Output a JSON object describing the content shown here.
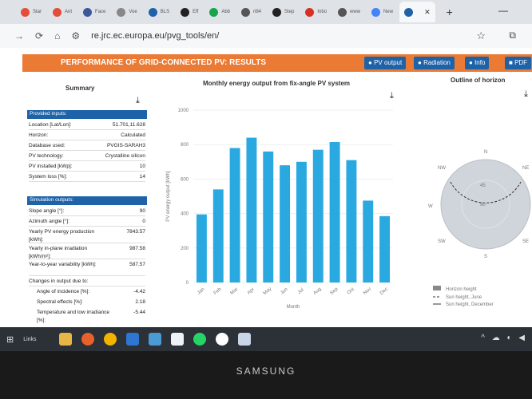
{
  "browser": {
    "tabs": [
      {
        "label": "Star",
        "color": "#e44c3c"
      },
      {
        "label": "Ant",
        "color": "#e44c3c"
      },
      {
        "label": "Face",
        "color": "#3b5998"
      },
      {
        "label": "Voe",
        "color": "#888888"
      },
      {
        "label": "BLS",
        "color": "#1e62a8"
      },
      {
        "label": "Eff",
        "color": "#222222"
      },
      {
        "label": "Abb",
        "color": "#1aa34a"
      },
      {
        "label": "ri84",
        "color": "#555555"
      },
      {
        "label": "Step",
        "color": "#222222"
      },
      {
        "label": "Inbo",
        "color": "#d93025"
      },
      {
        "label": "www",
        "color": "#555555"
      },
      {
        "label": "New",
        "color": "#4285f4"
      },
      {
        "label": "",
        "color": "#1e62a8"
      }
    ],
    "url": "re.jrc.ec.europa.eu/pvg_tools/en/"
  },
  "header": {
    "title": "PERFORMANCE OF GRID-CONNECTED PV: RESULTS",
    "buttons": [
      "PV output",
      "Radiation",
      "Info",
      "PDF"
    ]
  },
  "summary": {
    "title": "Summary",
    "provided_title": "Provided inputs:",
    "provided": [
      {
        "label": "Location [Lat/Lon]:",
        "value": "51.701,11.628"
      },
      {
        "label": "Horizon:",
        "value": "Calculated"
      },
      {
        "label": "Database used:",
        "value": "PVGIS-SARAH3"
      },
      {
        "label": "PV technology:",
        "value": "Crystalline silicon"
      },
      {
        "label": "PV installed [kWp]:",
        "value": "10"
      },
      {
        "label": "System loss [%]:",
        "value": "14"
      }
    ],
    "sim_title": "Simulation outputs:",
    "sim": [
      {
        "label": "Slope angle [°]:",
        "value": "90"
      },
      {
        "label": "Azimuth angle [°]:",
        "value": "0"
      },
      {
        "label": "Yearly PV energy production [kWh]:",
        "value": "7843.57"
      },
      {
        "label": "Yearly in-plane irradiation [kWh/m²]:",
        "value": "987.58"
      },
      {
        "label": "Year-to-year variability [kWh]:",
        "value": "587.57"
      },
      {
        "label": "Changes in output due to:",
        "value": ""
      }
    ],
    "changes": [
      {
        "label": "Angle of incidence [%]:",
        "value": "-4.42"
      },
      {
        "label": "Spectral effects [%]:",
        "value": "2.18"
      },
      {
        "label": "Temperature and low irradiance [%]:",
        "value": "-5.44"
      }
    ]
  },
  "chart_data": {
    "type": "bar",
    "title": "Monthly energy output from fix-angle PV system",
    "xlabel": "Month",
    "ylabel": "PV energy output [kWh]",
    "ylim": [
      0,
      1000
    ],
    "yticks": [
      0,
      200,
      400,
      600,
      800,
      1000
    ],
    "categories": [
      "Jan",
      "Feb",
      "Mar",
      "Apr",
      "May",
      "Jun",
      "Jul",
      "Aug",
      "Sep",
      "Oct",
      "Nov",
      "Dec"
    ],
    "values": [
      395,
      540,
      780,
      840,
      760,
      680,
      700,
      770,
      815,
      710,
      475,
      385
    ],
    "color": "#29a9e0"
  },
  "horizon": {
    "title": "Outline of horizon",
    "labels": {
      "n": "N",
      "nw": "NW",
      "ne": "NE",
      "w": "W",
      "sw": "SW",
      "se": "SE",
      "s": "S",
      "r45": "45",
      "r90": "90"
    },
    "legend": [
      "Horizon height",
      "Sun height, June",
      "Sun height, December"
    ]
  },
  "taskbar": {
    "links_label": "Links"
  },
  "monitor_brand": "SAMSUNG"
}
